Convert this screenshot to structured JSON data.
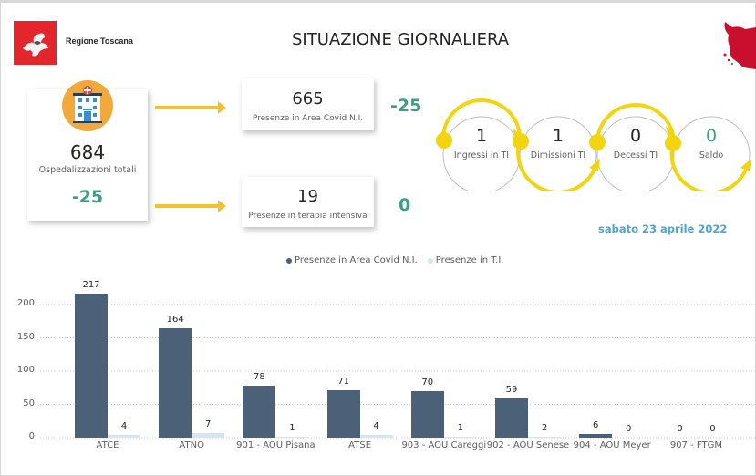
{
  "header": {
    "brand": "Regione Toscana",
    "title": "SITUAZIONE GIORNALIERA",
    "brand_color": "#e3262b"
  },
  "kpis": {
    "total": {
      "value": "684",
      "label": "Ospedalizzazioni totali",
      "delta": "-25",
      "icon": "hospital-icon"
    },
    "area_covid": {
      "value": "665",
      "label": "Presenze in Area Covid N.I.",
      "delta": "-25"
    },
    "terapia_intensiva": {
      "value": "19",
      "label": "Presenze in terapia intensiva",
      "delta": "0"
    }
  },
  "flow": [
    {
      "value": "1",
      "label": "Ingressi in TI"
    },
    {
      "value": "1",
      "label": "Dimissioni TI"
    },
    {
      "value": "0",
      "label": "Decessi TI"
    },
    {
      "value": "0",
      "label": "Saldo"
    }
  ],
  "date": "sabato 23 aprile 2022",
  "colors": {
    "accent_yellow": "#f2c12e",
    "positive_green": "#3a9f83",
    "series_dark": "#4a6178",
    "series_light": "#d5e6f3",
    "date_blue": "#4aa8d0"
  },
  "legend": [
    {
      "label": "Presenze in Area Covid N.I.",
      "color": "#4a6178"
    },
    {
      "label": "Presenze in T.I.",
      "color": "#d5e6f3"
    }
  ],
  "chart_data": {
    "type": "bar",
    "title": "",
    "xlabel": "",
    "ylabel": "",
    "categories": [
      "ATCE",
      "ATNO",
      "901 - AOU Pisana",
      "ATSE",
      "903 - AOU Careggi",
      "902 - AOU Senese",
      "904 - AOU Meyer",
      "907 - FTGM"
    ],
    "series": [
      {
        "name": "Presenze in Area Covid N.I.",
        "values": [
          217,
          164,
          78,
          71,
          70,
          59,
          6,
          0
        ]
      },
      {
        "name": "Presenze in T.I.",
        "values": [
          4,
          7,
          1,
          4,
          1,
          2,
          0,
          0
        ]
      }
    ],
    "ylim": [
      0,
      220
    ],
    "yticks": [
      0,
      50,
      100,
      150,
      200
    ],
    "grid": true,
    "legend_position": "top"
  }
}
